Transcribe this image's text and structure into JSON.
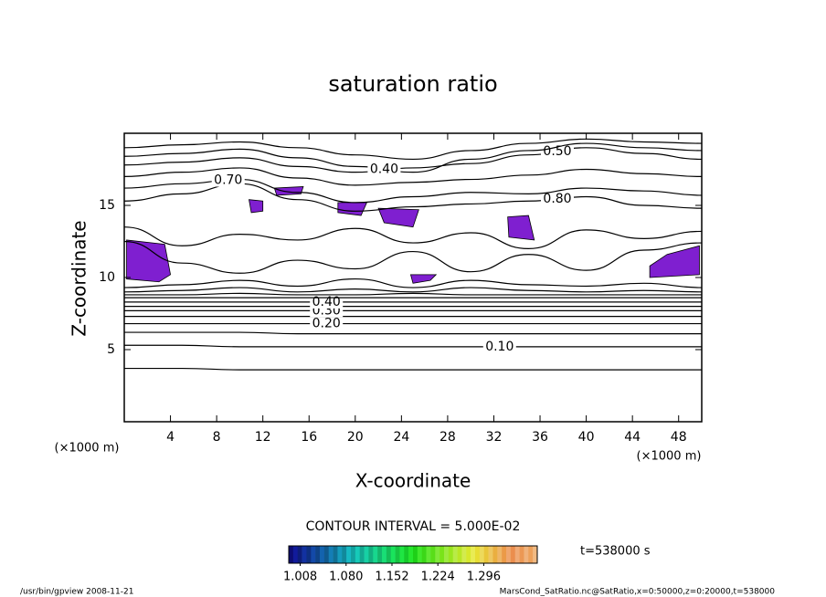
{
  "chart_data": {
    "type": "contour",
    "title": "saturation ratio",
    "xlabel": "X-coordinate",
    "ylabel": "Z-coordinate",
    "x_unit": "(×1000 m)",
    "xlim": [
      0,
      50
    ],
    "xticks": [
      4,
      8,
      12,
      16,
      20,
      24,
      28,
      32,
      36,
      40,
      44,
      48
    ],
    "ylim": [
      0,
      20
    ],
    "yticks": [
      5,
      10,
      15
    ],
    "line_color": "#000000",
    "grid_x": [
      0,
      5,
      10,
      15,
      20,
      25,
      30,
      35,
      40,
      45,
      50
    ],
    "contours": [
      {
        "level": 0.05,
        "z": [
          3.7,
          3.7,
          3.6,
          3.6,
          3.6,
          3.6,
          3.6,
          3.6,
          3.6,
          3.6,
          3.6
        ]
      },
      {
        "level": 0.1,
        "level_label": "0.10",
        "label_x": 32.5,
        "z": [
          5.3,
          5.3,
          5.2,
          5.2,
          5.2,
          5.2,
          5.2,
          5.2,
          5.2,
          5.2,
          5.2
        ]
      },
      {
        "level": 0.15,
        "z": [
          6.2,
          6.2,
          6.2,
          6.1,
          6.1,
          6.1,
          6.1,
          6.1,
          6.1,
          6.1,
          6.1
        ]
      },
      {
        "level": 0.2,
        "level_label": "0.20",
        "label_x": 17.5,
        "z": [
          6.8,
          6.8,
          6.8,
          6.8,
          6.8,
          6.8,
          6.8,
          6.8,
          6.8,
          6.8,
          6.8
        ]
      },
      {
        "level": 0.25,
        "z": [
          7.3,
          7.3,
          7.3,
          7.3,
          7.3,
          7.3,
          7.3,
          7.3,
          7.3,
          7.3,
          7.3
        ]
      },
      {
        "level": 0.3,
        "level_label": "0.30",
        "label_x": 17.5,
        "z": [
          7.7,
          7.7,
          7.7,
          7.7,
          7.7,
          7.7,
          7.7,
          7.7,
          7.7,
          7.7,
          7.7
        ]
      },
      {
        "level": 0.35,
        "z": [
          8.0,
          8.0,
          8.0,
          8.0,
          8.0,
          8.0,
          8.0,
          8.0,
          8.0,
          8.0,
          8.0
        ]
      },
      {
        "level": 0.4,
        "level_label": "0.40",
        "label_x": 17.5,
        "z": [
          8.3,
          8.3,
          8.3,
          8.3,
          8.3,
          8.3,
          8.3,
          8.3,
          8.3,
          8.3,
          8.3
        ]
      },
      {
        "level": 0.45,
        "z": [
          8.6,
          8.6,
          8.6,
          8.6,
          8.6,
          8.6,
          8.6,
          8.6,
          8.6,
          8.6,
          8.6
        ]
      },
      {
        "level": 0.5,
        "z": [
          8.8,
          8.8,
          8.9,
          8.8,
          8.8,
          8.9,
          8.8,
          8.8,
          8.8,
          8.8,
          8.8
        ]
      },
      {
        "level": 0.55,
        "z": [
          9.0,
          9.1,
          9.3,
          9.0,
          9.2,
          9.0,
          9.3,
          9.1,
          9.0,
          9.1,
          9.0
        ]
      },
      {
        "level": 0.6,
        "z": [
          9.3,
          9.5,
          9.8,
          9.4,
          9.9,
          9.3,
          9.8,
          9.5,
          9.4,
          9.6,
          9.3
        ]
      },
      {
        "level": 0.8,
        "z": [
          12.5,
          11.0,
          10.3,
          11.2,
          10.6,
          11.8,
          10.4,
          11.6,
          10.5,
          11.9,
          12.4
        ]
      },
      {
        "level": 0.7,
        "z": [
          13.5,
          12.2,
          13.0,
          12.6,
          13.4,
          12.4,
          13.1,
          12.0,
          13.3,
          12.7,
          13.2
        ]
      },
      {
        "level": 0.8,
        "level_label": "0.80",
        "label_x": 37.5,
        "z": [
          15.3,
          15.8,
          16.5,
          15.4,
          14.6,
          14.9,
          15.1,
          15.3,
          15.6,
          15.0,
          14.8
        ]
      },
      {
        "level": 0.7,
        "level_label": "0.70",
        "label_x": 9,
        "z": [
          16.2,
          16.5,
          16.8,
          15.9,
          15.2,
          15.6,
          15.9,
          15.8,
          16.2,
          16.0,
          15.7
        ]
      },
      {
        "level": 0.6,
        "z": [
          17.0,
          17.3,
          17.6,
          16.9,
          16.4,
          16.6,
          16.8,
          17.1,
          17.5,
          17.2,
          17.0
        ]
      },
      {
        "level": 0.5,
        "level_label": "0.50",
        "label_x": 37.5,
        "z": [
          17.8,
          18.0,
          18.3,
          17.7,
          17.3,
          17.6,
          17.9,
          18.5,
          19.0,
          18.6,
          18.2
        ]
      },
      {
        "level": 0.4,
        "level_label": "0.40",
        "label_x": 22.5,
        "z": [
          18.4,
          18.6,
          18.9,
          18.3,
          17.7,
          17.3,
          18.2,
          18.8,
          19.3,
          19.0,
          18.8
        ]
      },
      {
        "level": 0.3,
        "z": [
          19.0,
          19.2,
          19.4,
          19.0,
          18.5,
          18.2,
          18.8,
          19.3,
          19.6,
          19.4,
          19.3
        ]
      }
    ],
    "shade_color": "#7f1fd0",
    "shaded": [
      {
        "x": [
          0.2,
          3.5,
          4.0,
          3.0,
          0.2
        ],
        "z": [
          12.6,
          12.3,
          10.2,
          9.7,
          9.9
        ]
      },
      {
        "x": [
          45.5,
          49.8,
          49.8,
          47.0,
          45.5
        ],
        "z": [
          10.0,
          10.2,
          12.2,
          11.6,
          10.8
        ]
      },
      {
        "x": [
          18.5,
          21.0,
          20.5,
          18.5
        ],
        "z": [
          15.2,
          15.2,
          14.3,
          14.5
        ]
      },
      {
        "x": [
          22.0,
          25.5,
          25.0,
          22.5
        ],
        "z": [
          14.8,
          14.7,
          13.5,
          13.8
        ]
      },
      {
        "x": [
          33.2,
          35.0,
          35.5,
          33.3
        ],
        "z": [
          14.2,
          14.3,
          12.6,
          12.8
        ]
      },
      {
        "x": [
          13.0,
          15.5,
          15.3,
          13.2
        ],
        "z": [
          16.2,
          16.3,
          15.8,
          15.7
        ]
      },
      {
        "x": [
          10.8,
          12.0,
          12.0,
          11.0
        ],
        "z": [
          15.4,
          15.3,
          14.6,
          14.5
        ]
      },
      {
        "x": [
          24.8,
          27.0,
          26.5,
          25.0
        ],
        "z": [
          10.2,
          10.2,
          9.8,
          9.6
        ]
      }
    ],
    "contour_interval": "CONTOUR INTERVAL = 5.000E-02",
    "time_label": "t=538000 s",
    "colorbar": {
      "lim": [
        0.99,
        1.38
      ],
      "ticks": [
        1.008,
        {
          "value": 1.08,
          "label": "1.080"
        },
        1.152,
        1.224,
        1.296
      ]
    },
    "footer_left": "/usr/bin/gpview  2008-11-21",
    "footer_right": "MarsCond_SatRatio.nc@SatRatio,x=0:50000,z=0:20000,t=538000"
  }
}
